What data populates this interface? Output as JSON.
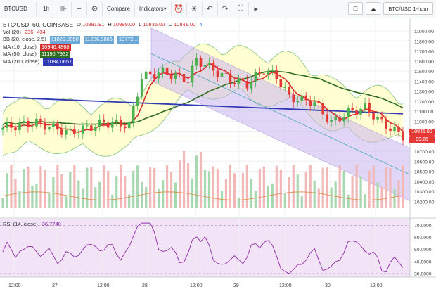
{
  "toolbar": {
    "symbol": "BTCUSD",
    "interval": "1h",
    "compare_label": "Compare",
    "indicators_label": "Indicators",
    "title_btn_label": "BTC/USD 1-hour",
    "icons": [
      "plus-icon",
      "candles-icon",
      "gear-icon",
      "alert-icon",
      "bulb-icon",
      "undo-icon",
      "redo-icon",
      "fullscreen-icon",
      "play-icon",
      "square-icon",
      "cloud-icon"
    ]
  },
  "legend": {
    "title": "BTC/USD, 60, COINBASE",
    "ohlc": {
      "o_label": "O",
      "o": "10981.91",
      "h_label": "H",
      "h": "10999.00",
      "l_label": "L",
      "l": "10835.00",
      "c_label": "C",
      "c": "10841.00",
      "badge": "4"
    },
    "vol": {
      "label": "Vol (20)",
      "v1": "236",
      "v2": "434"
    },
    "bb": {
      "label": "BB (20, close, 2.5)",
      "v1": "11029.2050",
      "v2": "11286.0886",
      "v3": "10772..."
    },
    "ma10": {
      "label": "MA (10, close)",
      "v": "10946.4860",
      "color": "#d62b2b"
    },
    "ma50": {
      "label": "MA (50, close)",
      "v": "11190.7932",
      "color": "#2e6b1e"
    },
    "ma200": {
      "label": "MA (200, close)",
      "v": "11084.0657",
      "color": "#2f3ab3"
    }
  },
  "rsi": {
    "label": "RSI (14, close)",
    "value": "36.7740",
    "ticks": [
      "70.0000",
      "60.0000",
      "50.0000",
      "40.0000",
      "30.0000"
    ]
  },
  "price_axis": {
    "ticks": [
      "11900.00",
      "11800.00",
      "11700.00",
      "11600.00",
      "11500.00",
      "11400.00",
      "11300.00",
      "11200.00",
      "11100.00",
      "11000.00",
      "10900.00",
      "10800.00",
      "10700.00",
      "10600.00",
      "10500.00",
      "10400.00",
      "10300.00",
      "10200.00"
    ],
    "last": "10841.00",
    "countdown": "09:26"
  },
  "time_axis": {
    "ticks": [
      "12:00",
      "27",
      "12:00",
      "28",
      "12:00",
      "29",
      "12:00",
      "30",
      "12:00"
    ]
  },
  "colors": {
    "up": "#4caf50",
    "down": "#e53935",
    "bb_fill": "#ffffcc",
    "channel_fill": "#c9b6f0"
  }
}
